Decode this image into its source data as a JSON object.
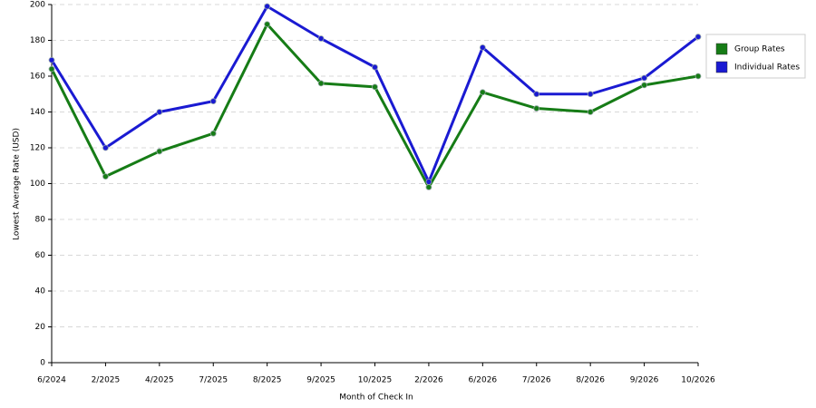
{
  "chart_data": {
    "type": "line",
    "x_label": "Month of Check In",
    "y_label": "Lowest Average Rate (USD)",
    "categories": [
      "6/2024",
      "2/2025",
      "4/2025",
      "7/2025",
      "8/2025",
      "9/2025",
      "10/2025",
      "2/2026",
      "6/2026",
      "7/2026",
      "8/2026",
      "9/2026",
      "10/2026"
    ],
    "series": [
      {
        "name": "Group Rates",
        "color": "#167c16",
        "values": [
          164,
          104,
          118,
          128,
          189,
          156,
          154,
          98,
          151,
          142,
          140,
          155,
          160
        ]
      },
      {
        "name": "Individual Rates",
        "color": "#1a1ad2",
        "values": [
          169,
          120,
          140,
          146,
          199,
          181,
          165,
          101,
          176,
          150,
          150,
          159,
          182
        ]
      }
    ],
    "ylim": [
      0,
      200
    ],
    "yticks": [
      0,
      20,
      40,
      60,
      80,
      100,
      120,
      140,
      160,
      180,
      200
    ],
    "grid": true,
    "legend": "right"
  }
}
